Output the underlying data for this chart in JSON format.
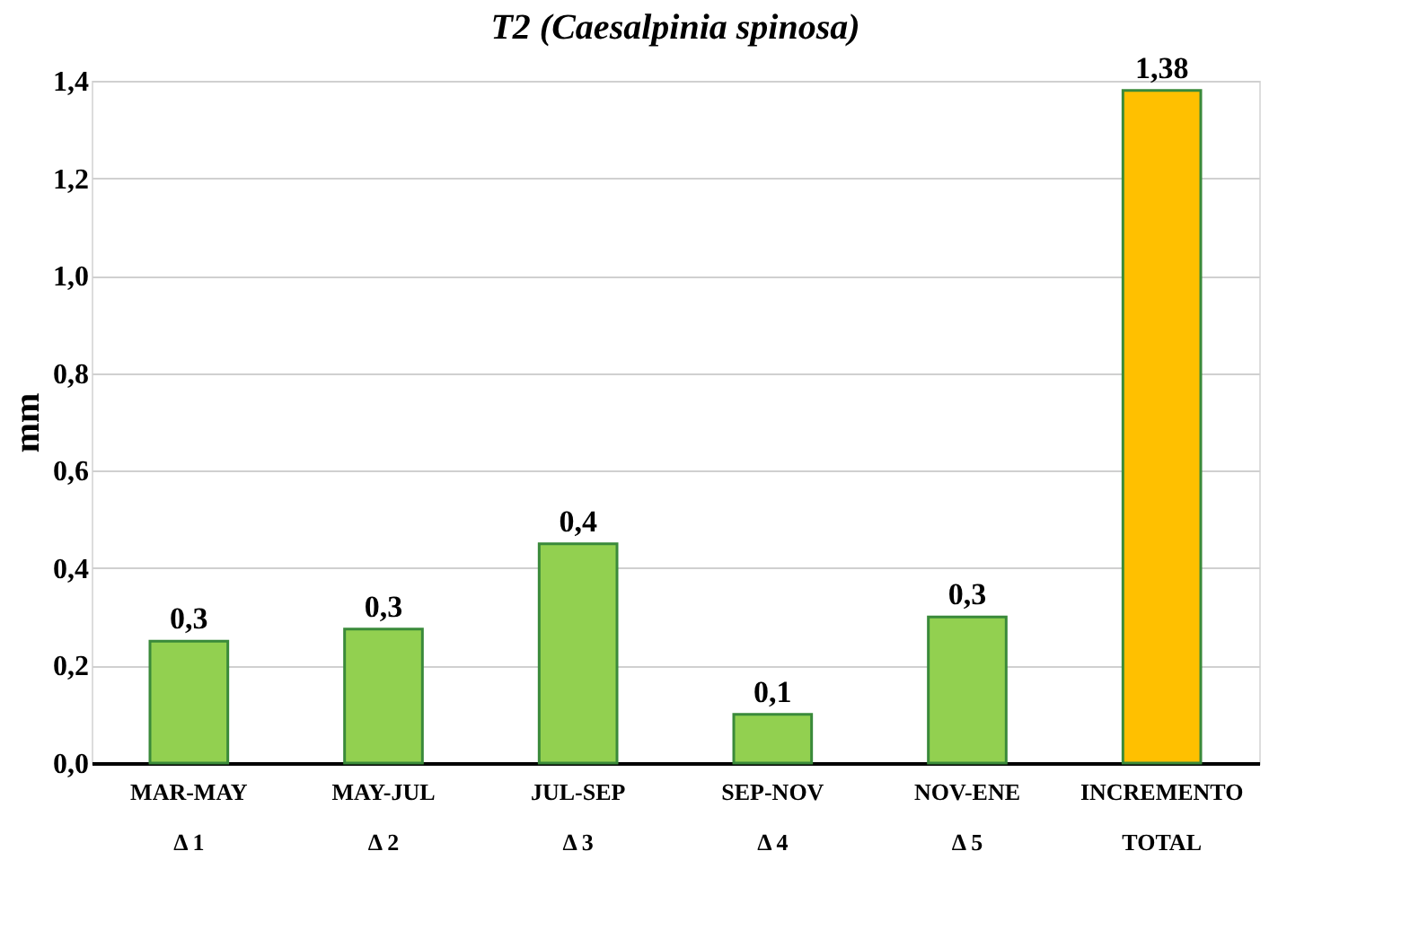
{
  "chart_data": {
    "type": "bar",
    "title": "T2 (Caesalpinia spinosa)",
    "categories": [
      "MAR-MAY\nΔ 1",
      "MAY-JUL\nΔ 2",
      "JUL-SEP\nΔ 3",
      "SEP-NOV\nΔ 4",
      "NOV-ENE\nΔ 5",
      "INCREMENTO\nTOTAL"
    ],
    "values": [
      0.25,
      0.275,
      0.45,
      0.1,
      0.3,
      1.38
    ],
    "colors": [
      "#92d050",
      "#92d050",
      "#92d050",
      "#92d050",
      "#92d050",
      "#ffc000"
    ],
    "value_labels": [
      "0,3",
      "0,3",
      "0,4",
      "0,1",
      "0,3",
      "1,38"
    ],
    "ylabel": "mm",
    "ylim": [
      0,
      1.4
    ],
    "yticks": [
      {
        "value": 0,
        "label": "0,0"
      },
      {
        "value": 0.2,
        "label": "0,2"
      },
      {
        "value": 0.4,
        "label": "0,4"
      },
      {
        "value": 0.6,
        "label": "0,6"
      },
      {
        "value": 0.8,
        "label": "0,8"
      },
      {
        "value": 1.0,
        "label": "1,0"
      },
      {
        "value": 1.2,
        "label": "1,2"
      },
      {
        "value": 1.4,
        "label": "1,4"
      }
    ],
    "grid": "y"
  }
}
